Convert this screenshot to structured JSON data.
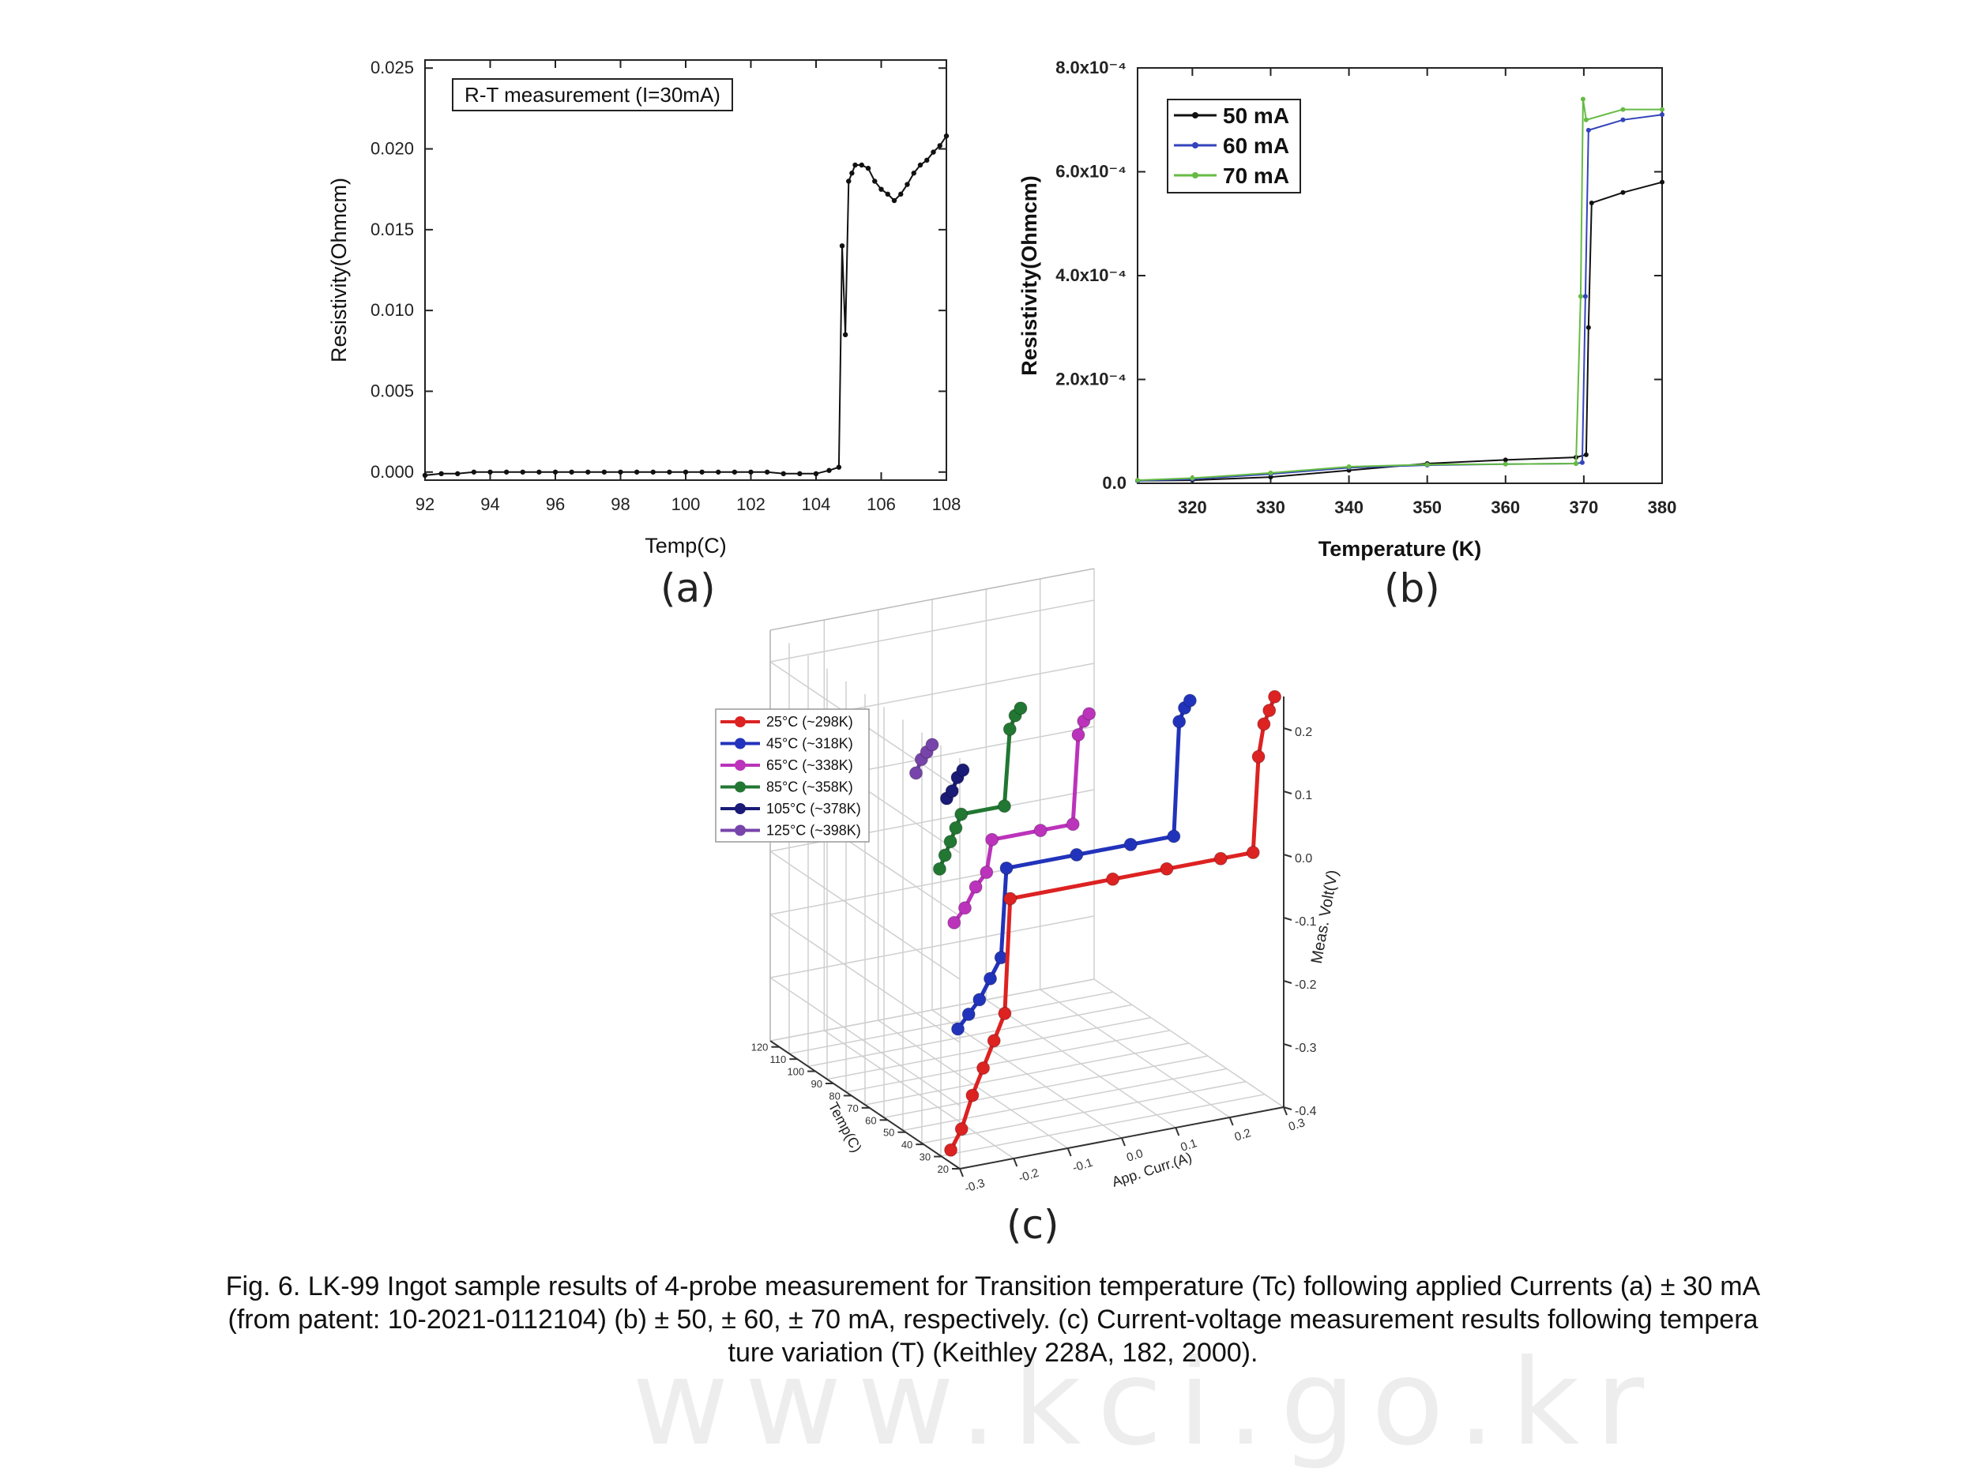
{
  "chart_data": [
    {
      "panel": "(a)",
      "type": "scatter",
      "annotation": "R-T measurement (I=30mA)",
      "xlabel": "Temp(C)",
      "ylabel": "Resistivity(Ohmcm)",
      "xlim": [
        92,
        108
      ],
      "ylim": [
        -0.0005,
        0.0255
      ],
      "xticks": [
        "92",
        "94",
        "96",
        "98",
        "100",
        "102",
        "104",
        "106",
        "108"
      ],
      "yticks": [
        "0.000",
        "0.005",
        "0.010",
        "0.015",
        "0.020",
        "0.025"
      ],
      "series": [
        {
          "color": "#111111",
          "x": [
            92.0,
            92.5,
            93.0,
            93.5,
            94.0,
            94.5,
            95.0,
            95.5,
            96.0,
            96.5,
            97.0,
            97.5,
            98.0,
            98.5,
            99.0,
            99.5,
            100.0,
            100.5,
            101.0,
            101.5,
            102.0,
            102.5,
            103.0,
            103.5,
            104.0,
            104.4,
            104.7,
            104.8,
            104.9,
            105.0,
            105.1,
            105.2,
            105.4,
            105.6,
            105.8,
            106.0,
            106.2,
            106.4,
            106.6,
            106.8,
            107.0,
            107.2,
            107.4,
            107.6,
            107.8,
            108.0
          ],
          "y": [
            -0.0002,
            -0.0001,
            -0.0001,
            0.0,
            0.0,
            0.0,
            0.0,
            0.0,
            0.0,
            0.0,
            0.0,
            0.0,
            0.0,
            0.0,
            0.0,
            0.0,
            0.0,
            0.0,
            0.0,
            0.0,
            0.0,
            0.0,
            -0.0001,
            -0.0001,
            -0.0001,
            0.0001,
            0.0003,
            0.014,
            0.0085,
            0.018,
            0.0185,
            0.019,
            0.019,
            0.0188,
            0.018,
            0.0175,
            0.0172,
            0.0168,
            0.0172,
            0.0178,
            0.0185,
            0.019,
            0.0193,
            0.0198,
            0.0202,
            0.0208
          ]
        }
      ]
    },
    {
      "panel": "(b)",
      "type": "line",
      "xlabel": "Temperature (K)",
      "ylabel": "Resistivity(Ohmcm)",
      "xlim": [
        313,
        380
      ],
      "ylim": [
        0,
        0.0008
      ],
      "xticks": [
        "320",
        "330",
        "340",
        "350",
        "360",
        "370",
        "380"
      ],
      "yticks": [
        "0.0",
        "2.0x10⁻⁴",
        "4.0x10⁻⁴",
        "6.0x10⁻⁴",
        "8.0x10⁻⁴"
      ],
      "legend_position": "top-left",
      "series": [
        {
          "name": "50 mA",
          "color": "#111111",
          "x": [
            313,
            320,
            330,
            340,
            350,
            360,
            369,
            370.3,
            370.6,
            371,
            375,
            380
          ],
          "y": [
            5e-06,
            6e-06,
            1.2e-05,
            2.5e-05,
            3.8e-05,
            4.5e-05,
            5e-05,
            5.5e-05,
            0.0003,
            0.00054,
            0.00056,
            0.00058
          ]
        },
        {
          "name": "60 mA",
          "color": "#3344bb",
          "x": [
            313,
            320,
            330,
            340,
            350,
            360,
            369,
            369.8,
            370.2,
            370.6,
            375,
            380
          ],
          "y": [
            5e-06,
            8e-06,
            1.8e-05,
            3e-05,
            3.5e-05,
            3.7e-05,
            3.8e-05,
            4e-05,
            0.00036,
            0.00068,
            0.0007,
            0.00071
          ]
        },
        {
          "name": "70 mA",
          "color": "#66bb44",
          "x": [
            313,
            320,
            330,
            340,
            350,
            360,
            369,
            369.6,
            369.9,
            370.3,
            375,
            380
          ],
          "y": [
            6e-06,
            1e-05,
            2e-05,
            3.2e-05,
            3.6e-05,
            3.7e-05,
            3.8e-05,
            0.00036,
            0.00074,
            0.0007,
            0.00072,
            0.00072
          ]
        }
      ]
    },
    {
      "panel": "(c)",
      "type": "scatter",
      "xlabel": "App. Curr.(A)",
      "ylabel": "Temp(C)",
      "zlabel": "Meas. Volt(V)",
      "x_ticks": [
        "-0.3",
        "-0.2",
        "-0.1",
        "0.0",
        "0.1",
        "0.2",
        "0.3"
      ],
      "y_ticks": [
        "20",
        "30",
        "40",
        "50",
        "60",
        "70",
        "80",
        "90",
        "100",
        "110",
        "120"
      ],
      "z_ticks": [
        "-0.4",
        "-0.3",
        "-0.2",
        "-0.1",
        "0.0",
        "0.1",
        "0.2"
      ],
      "legend_position": "top-left",
      "series": [
        {
          "name": "25°C (~298K)",
          "color": "#dd2222",
          "temp": 25,
          "x": [
            -0.3,
            -0.28,
            -0.26,
            -0.24,
            -0.22,
            -0.2,
            -0.19,
            0.0,
            0.1,
            0.2,
            0.26,
            0.27,
            0.28,
            0.29,
            0.3
          ],
          "y": [
            -0.38,
            -0.35,
            -0.3,
            -0.26,
            -0.22,
            -0.18,
            0.0,
            0.0,
            0.0,
            0.0,
            0.0,
            0.15,
            0.2,
            0.22,
            0.24
          ]
        },
        {
          "name": "45°C (~318K)",
          "color": "#2233bb",
          "temp": 45,
          "x": [
            -0.22,
            -0.2,
            -0.18,
            -0.16,
            -0.14,
            -0.13,
            0.0,
            0.1,
            0.18,
            0.19,
            0.2,
            0.21
          ],
          "y": [
            -0.24,
            -0.22,
            -0.2,
            -0.17,
            -0.14,
            0.0,
            0.0,
            0.0,
            0.0,
            0.18,
            0.2,
            0.21
          ]
        },
        {
          "name": "65°C (~338K)",
          "color": "#bb33bb",
          "temp": 65,
          "x": [
            -0.16,
            -0.14,
            -0.12,
            -0.1,
            -0.09,
            0.0,
            0.06,
            0.07,
            0.08,
            0.09
          ],
          "y": [
            -0.12,
            -0.1,
            -0.07,
            -0.05,
            0.0,
            0.0,
            0.0,
            0.14,
            0.16,
            0.17
          ]
        },
        {
          "name": "85°C (~358K)",
          "color": "#227733",
          "temp": 85,
          "x": [
            -0.12,
            -0.11,
            -0.1,
            -0.09,
            -0.08,
            0.0,
            0.01,
            0.02,
            0.03
          ],
          "y": [
            -0.08,
            -0.06,
            -0.04,
            -0.02,
            0.0,
            0.0,
            0.12,
            0.14,
            0.15
          ]
        },
        {
          "name": "105°C (~378K)",
          "color": "#1a1a77",
          "temp": 105,
          "x": [
            -0.04,
            -0.03,
            -0.02,
            -0.01
          ],
          "y": [
            -0.02,
            -0.01,
            0.01,
            0.02
          ]
        },
        {
          "name": "125°C (~398K)",
          "color": "#7744aa",
          "temp": 125,
          "x": [
            -0.03,
            -0.02,
            -0.01,
            0.0
          ],
          "y": [
            -0.02,
            0.0,
            0.01,
            0.02
          ]
        }
      ]
    }
  ],
  "panel_labels": {
    "a": "(a)",
    "b": "(b)",
    "c": "(c)"
  },
  "caption": {
    "line1": "Fig. 6. LK-99 Ingot sample results of 4-probe measurement for Transition temperature (Tc) following applied Currents (a) ± 30 mA",
    "line2": "(from patent: 10-2021-0112104) (b) ± 50, ± 60, ± 70 mA, respectively. (c) Current-voltage measurement results following tempera",
    "line3": "ture variation (T) (Keithley 228A, 182, 2000)."
  },
  "watermark": "www.kci.go.kr"
}
